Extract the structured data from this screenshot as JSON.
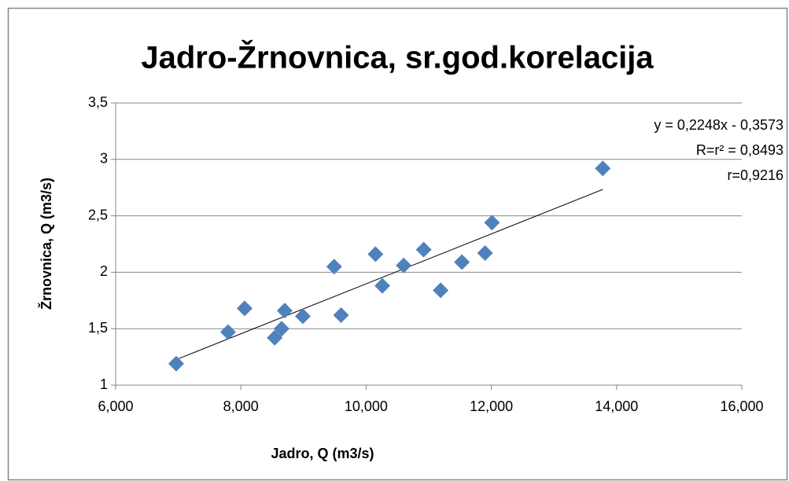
{
  "chart_data": {
    "type": "scatter",
    "title": "Jadro-Žrnovnica, sr.god.korelacija",
    "x_label": "Jadro, Q (m3/s)",
    "y_label": "Žrnovnica, Q (m3/s)",
    "annotations": [
      "y = 0,2248x - 0,3573",
      "R=r² = 0,8493",
      "r=0,9216"
    ],
    "color": "#4f81bd",
    "trendline_color": "#000000",
    "grid": true,
    "x": [
      6967,
      7796,
      8060,
      8540,
      8650,
      8700,
      8990,
      9490,
      9600,
      10150,
      10260,
      10600,
      10920,
      11190,
      11530,
      11900,
      12010,
      13780
    ],
    "values": [
      1.19,
      1.47,
      1.68,
      1.42,
      1.5,
      1.66,
      1.61,
      2.05,
      1.62,
      2.16,
      1.88,
      2.06,
      2.2,
      1.84,
      2.09,
      2.17,
      2.44,
      2.92
    ],
    "xlim": [
      6000,
      16000
    ],
    "xticks": [
      {
        "value": 6000,
        "label": "6,000"
      },
      {
        "value": 8000,
        "label": "8,000"
      },
      {
        "value": 10000,
        "label": "10,000"
      },
      {
        "value": 12000,
        "label": "12,000"
      },
      {
        "value": 14000,
        "label": "14,000"
      },
      {
        "value": 16000,
        "label": "16,000"
      }
    ],
    "ylim": [
      1,
      3.5
    ],
    "yticks": [
      1,
      {
        "value": 1.5,
        "label": "1,5"
      },
      2,
      {
        "value": 2.5,
        "label": "2,5"
      },
      3,
      {
        "value": 3.5,
        "label": "3,5"
      }
    ]
  }
}
